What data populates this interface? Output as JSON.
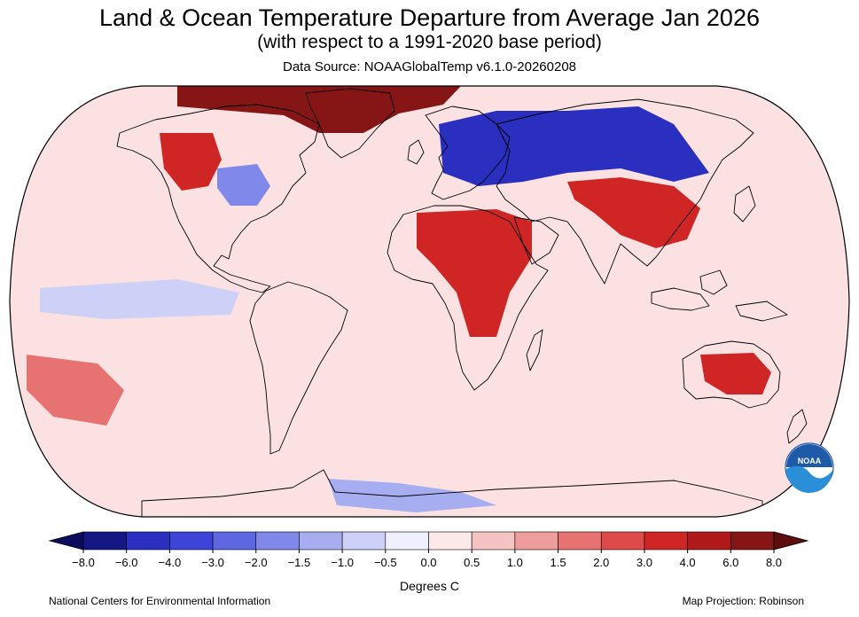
{
  "header": {
    "title": "Land & Ocean Temperature Departure from Average Jan 2026",
    "subtitle": "(with respect to a 1991-2020 base period)",
    "source": "Data Source: NOAAGlobalTemp v6.1.0-20260208"
  },
  "map": {
    "projection_label": "Map Projection: Robinson",
    "ocean_color": "#fbe1e1",
    "coastline_color": "#000000",
    "logo": {
      "icon": "noaa-logo-icon",
      "text": "NOAA",
      "color": "#1f5aa8"
    },
    "anomaly_regions": [
      {
        "name": "arctic-canada-greenland",
        "level": 8
      },
      {
        "name": "north-asia-siberia",
        "level": -6
      },
      {
        "name": "north-africa",
        "level": 3
      },
      {
        "name": "eastern-china",
        "level": 3
      },
      {
        "name": "australia",
        "level": 3
      },
      {
        "name": "western-north-america",
        "level": 3
      },
      {
        "name": "east-north-america",
        "level": -2
      },
      {
        "name": "south-pacific",
        "level": 1.5
      },
      {
        "name": "tropical-pacific",
        "level": -1
      },
      {
        "name": "antarctica-coast",
        "level": -1.5
      }
    ]
  },
  "colorbar": {
    "units": "Degrees C",
    "ticks": [
      "−8.0",
      "−6.0",
      "−4.0",
      "−3.0",
      "−2.0",
      "−1.5",
      "−1.0",
      "−0.5",
      "0.0",
      "0.5",
      "1.0",
      "1.5",
      "2.0",
      "3.0",
      "4.0",
      "6.0",
      "8.0"
    ],
    "colors": [
      "#141782",
      "#2a2fbf",
      "#3d45d8",
      "#5d67e1",
      "#8088ea",
      "#a6adf0",
      "#cdd1f7",
      "#eef0fd",
      "#fde9e9",
      "#f6c3c3",
      "#ee9c9c",
      "#e77272",
      "#de4a4a",
      "#cf2525",
      "#b01a1a",
      "#861515"
    ],
    "low_end_color": "#0a0d5c",
    "high_end_color": "#5e0d0d"
  },
  "footer": {
    "left": "National Centers for Environmental Information"
  }
}
